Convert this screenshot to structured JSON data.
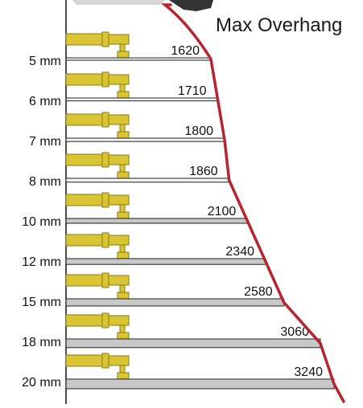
{
  "title": "Max Overhang",
  "colors": {
    "curve": "#b8242e",
    "clamp_fill": "#d9c534",
    "clamp_stroke": "#8a7a10",
    "bar_dark": "#f2f2f2",
    "bar_light": "#c8c8c8",
    "bar_stroke": "#222222"
  },
  "rows": [
    {
      "thickness": "5 mm",
      "overhang": "1620"
    },
    {
      "thickness": "6 mm",
      "overhang": "1710"
    },
    {
      "thickness": "7 mm",
      "overhang": "1800"
    },
    {
      "thickness": "8 mm",
      "overhang": "1860"
    },
    {
      "thickness": "10 mm",
      "overhang": "2100"
    },
    {
      "thickness": "12 mm",
      "overhang": "2340"
    },
    {
      "thickness": "15 mm",
      "overhang": "2580"
    },
    {
      "thickness": "18 mm",
      "overhang": "3060"
    },
    {
      "thickness": "20 mm",
      "overhang": "3240"
    }
  ]
}
